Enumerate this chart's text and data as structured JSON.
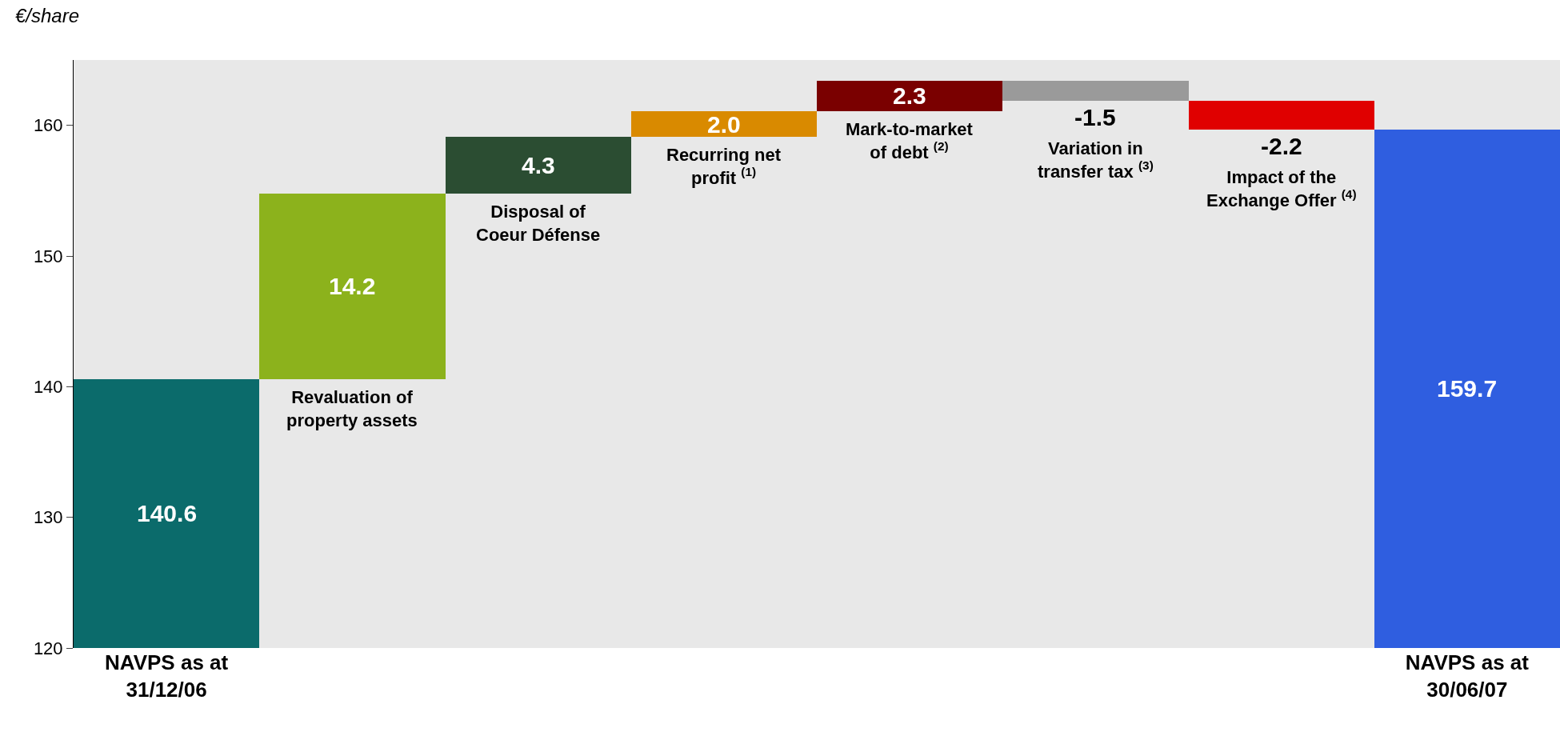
{
  "chart_data": {
    "type": "bar",
    "ylabel": "€/share",
    "categories": [
      "NAVPS as at 31/12/06",
      "Revaluation of property assets",
      "Disposal of Coeur Défense",
      "Recurring net profit $^{(1)}$",
      "Mark-to-market of debt $^{(2)}$",
      "Variation in transfer tax $^{(3)}$",
      "Impact of the Exchange Offer $^{(4)}$",
      "NAVPS as at 30/06/07"
    ],
    "values": [
      140.6,
      14.2,
      4.3,
      2.0,
      2.3,
      -1.5,
      -2.2,
      159.7
    ],
    "base": [
      0,
      140.6,
      154.8,
      159.1,
      161.1,
      163.4,
      161.9,
      0
    ],
    "colors": [
      "#0b6b6b",
      "#8cb21c",
      "#2b4d32",
      "#d98a00",
      "#7a0000",
      "#9a9a9a",
      "#e00000",
      "#2f5ee0"
    ],
    "value_labels": [
      "140.6",
      "14.2",
      "4.3",
      "2.0",
      "2.3",
      "-1.5",
      "-2.2",
      "159.7"
    ],
    "ylim": [
      120,
      165
    ],
    "yticks": [
      120,
      130,
      140,
      150,
      160
    ],
    "grid": false
  }
}
